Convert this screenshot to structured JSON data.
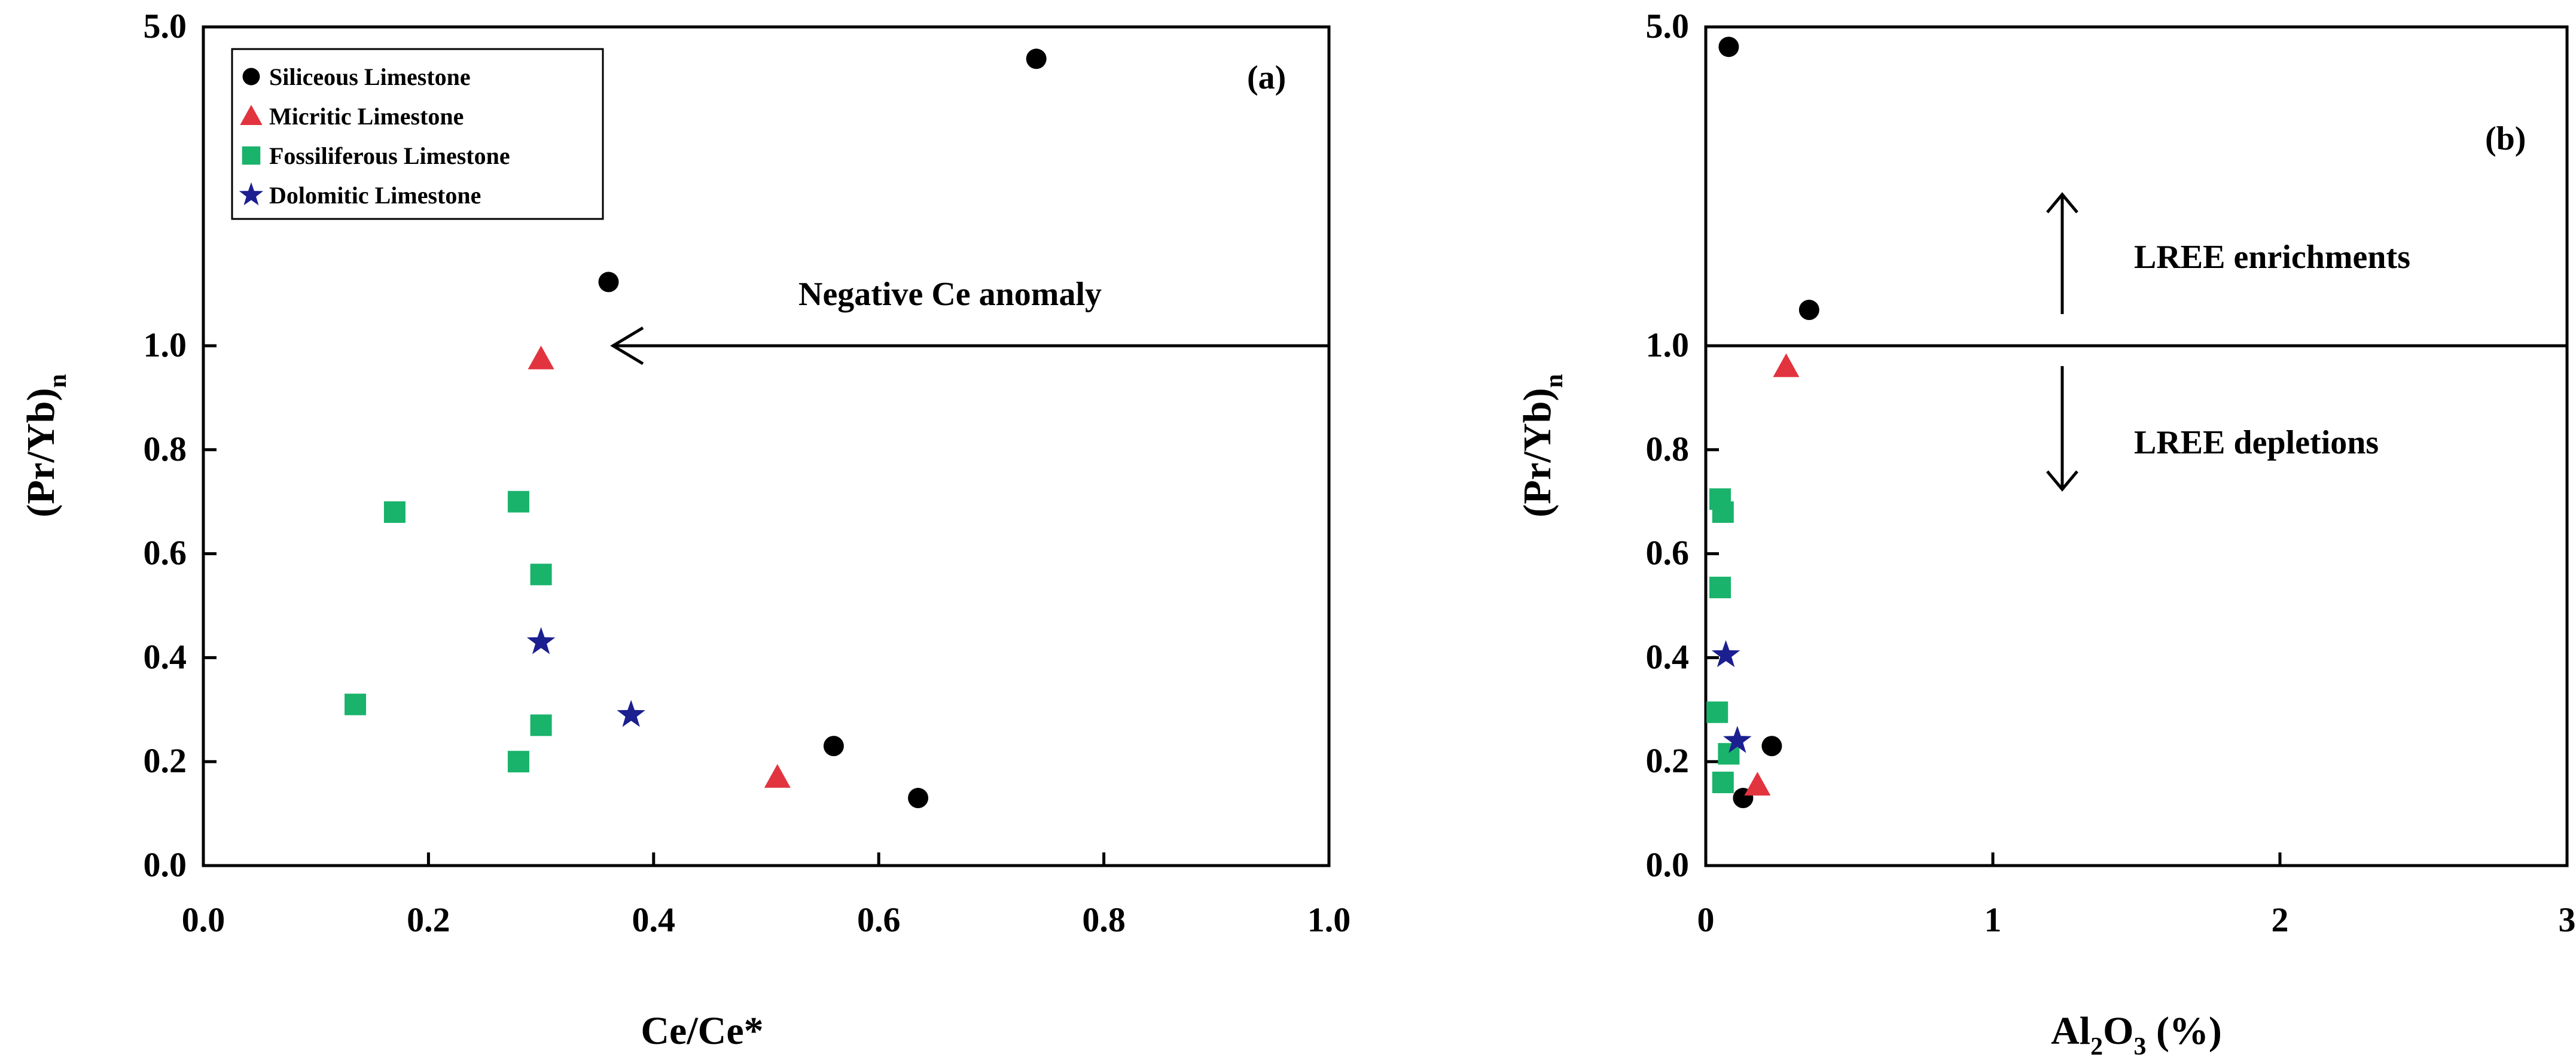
{
  "legend": [
    {
      "key": "siliceous",
      "label": "Siliceous Limestone",
      "marker": "circle",
      "color": "#000000"
    },
    {
      "key": "micritic",
      "label": "Micritic Limestone",
      "marker": "triangle",
      "color": "#e2343f"
    },
    {
      "key": "fossiliferous",
      "label": "Fossiliferous Limestone",
      "marker": "square",
      "color": "#19b36b"
    },
    {
      "key": "dolomitic",
      "label": "Dolomitic Limestone",
      "marker": "star",
      "color": "#1c1f8f"
    }
  ],
  "chart_data": [
    {
      "type": "scatter",
      "panel_label": "(a)",
      "xlabel": "Ce/Ce*",
      "ylabel": "(Pr/Yb)",
      "ylabel_sub": "n",
      "xlim": [
        0.0,
        1.0
      ],
      "xticks": [
        0.0,
        0.2,
        0.4,
        0.6,
        0.8,
        1.0
      ],
      "xtick_labels": [
        "0.0",
        "0.2",
        "0.4",
        "0.6",
        "0.8",
        "1.0"
      ],
      "yticks": [
        0.0,
        0.2,
        0.4,
        0.6,
        0.8,
        1.0,
        5.0
      ],
      "ytick_labels": [
        "0.0",
        "0.2",
        "0.4",
        "0.6",
        "0.8",
        "1.0",
        "5.0"
      ],
      "y_scale": "linear from 0 to 1, compressed upper segment from 1 to 5",
      "annotations": {
        "arrow_text": "Negative Ce anomaly",
        "reference_line_y": 1.0
      },
      "series": [
        {
          "name": "Siliceous Limestone",
          "points": [
            [
              0.74,
              4.6
            ],
            [
              0.36,
              1.8
            ],
            [
              0.56,
              0.23
            ],
            [
              0.635,
              0.13
            ]
          ]
        },
        {
          "name": "Micritic Limestone",
          "points": [
            [
              0.3,
              0.975
            ],
            [
              0.51,
              0.17
            ]
          ]
        },
        {
          "name": "Fossiliferous Limestone",
          "points": [
            [
              0.17,
              0.68
            ],
            [
              0.28,
              0.7
            ],
            [
              0.3,
              0.56
            ],
            [
              0.135,
              0.31
            ],
            [
              0.3,
              0.27
            ],
            [
              0.28,
              0.2
            ]
          ]
        },
        {
          "name": "Dolomitic Limestone",
          "points": [
            [
              0.3,
              0.43
            ],
            [
              0.38,
              0.29
            ]
          ]
        }
      ]
    },
    {
      "type": "scatter",
      "panel_label": "(b)",
      "xlabel": "Al",
      "xlabel_sub1": "2",
      "xlabel_mid": "O",
      "xlabel_sub2": "3",
      "xlabel_tail": " (%)",
      "ylabel": "(Pr/Yb)",
      "ylabel_sub": "n",
      "xlim": [
        0,
        3
      ],
      "xticks": [
        0,
        1,
        2,
        3
      ],
      "xtick_labels": [
        "0",
        "1",
        "2",
        "3"
      ],
      "yticks": [
        0.0,
        0.2,
        0.4,
        0.6,
        0.8,
        1.0,
        5.0
      ],
      "ytick_labels": [
        "0.0",
        "0.2",
        "0.4",
        "0.6",
        "0.8",
        "1.0",
        "5.0"
      ],
      "y_scale": "linear from 0 to 1, compressed upper segment from 1 to 5",
      "annotations": {
        "upper_text": "LREE enrichments",
        "lower_text": "LREE depletions",
        "reference_line_y": 1.0
      },
      "series": [
        {
          "name": "Siliceous Limestone",
          "points": [
            [
              0.08,
              4.75
            ],
            [
              0.36,
              1.45
            ],
            [
              0.23,
              0.23
            ],
            [
              0.13,
              0.13
            ]
          ]
        },
        {
          "name": "Micritic Limestone",
          "points": [
            [
              0.28,
              0.96
            ],
            [
              0.18,
              0.155
            ]
          ]
        },
        {
          "name": "Fossiliferous Limestone",
          "points": [
            [
              0.05,
              0.705
            ],
            [
              0.06,
              0.68
            ],
            [
              0.05,
              0.535
            ],
            [
              0.04,
              0.295
            ],
            [
              0.08,
              0.215
            ],
            [
              0.06,
              0.16
            ]
          ]
        },
        {
          "name": "Dolomitic Limestone",
          "points": [
            [
              0.07,
              0.405
            ],
            [
              0.11,
              0.24
            ]
          ]
        }
      ]
    }
  ]
}
